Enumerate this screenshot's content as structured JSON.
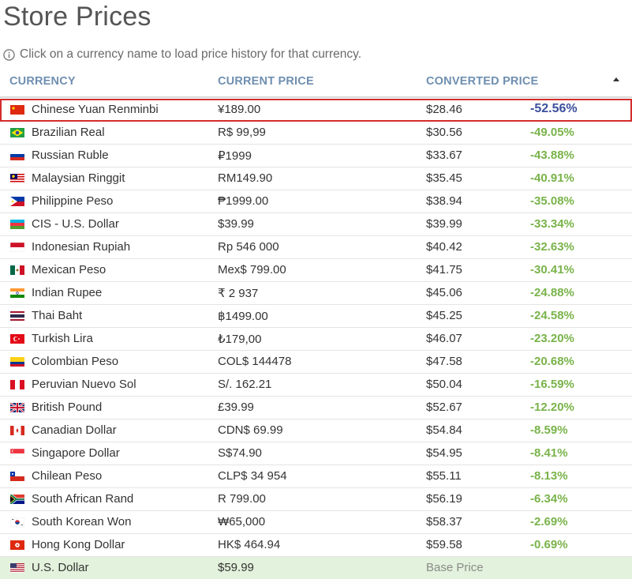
{
  "page": {
    "title": "Store Prices",
    "hint": "Click on a currency name to load price history for that currency."
  },
  "table": {
    "headers": {
      "currency": "CURRENCY",
      "current_price": "CURRENT PRICE",
      "converted_price": "CONVERTED PRICE"
    },
    "sort": "descending",
    "rows": [
      {
        "currency": "Chinese Yuan Renminbi",
        "flag": "cn",
        "price": "¥189.00",
        "converted": "$28.46",
        "diff": "-52.56%"
      },
      {
        "currency": "Brazilian Real",
        "flag": "br",
        "price": "R$ 99,99",
        "converted": "$30.56",
        "diff": "-49.05%"
      },
      {
        "currency": "Russian Ruble",
        "flag": "ru",
        "price": "₽1999",
        "converted": "$33.67",
        "diff": "-43.88%"
      },
      {
        "currency": "Malaysian Ringgit",
        "flag": "my",
        "price": "RM149.90",
        "converted": "$35.45",
        "diff": "-40.91%"
      },
      {
        "currency": "Philippine Peso",
        "flag": "ph",
        "price": "₱1999.00",
        "converted": "$38.94",
        "diff": "-35.08%"
      },
      {
        "currency": "CIS - U.S. Dollar",
        "flag": "az",
        "price": "$39.99",
        "converted": "$39.99",
        "diff": "-33.34%"
      },
      {
        "currency": "Indonesian Rupiah",
        "flag": "id",
        "price": "Rp 546 000",
        "converted": "$40.42",
        "diff": "-32.63%"
      },
      {
        "currency": "Mexican Peso",
        "flag": "mx",
        "price": "Mex$ 799.00",
        "converted": "$41.75",
        "diff": "-30.41%"
      },
      {
        "currency": "Indian Rupee",
        "flag": "in",
        "price": "₹ 2 937",
        "converted": "$45.06",
        "diff": "-24.88%"
      },
      {
        "currency": "Thai Baht",
        "flag": "th",
        "price": "฿1499.00",
        "converted": "$45.25",
        "diff": "-24.58%"
      },
      {
        "currency": "Turkish Lira",
        "flag": "tr",
        "price": "₺179,00",
        "converted": "$46.07",
        "diff": "-23.20%"
      },
      {
        "currency": "Colombian Peso",
        "flag": "co",
        "price": "COL$ 144478",
        "converted": "$47.58",
        "diff": "-20.68%"
      },
      {
        "currency": "Peruvian Nuevo Sol",
        "flag": "pe",
        "price": "S/. 162.21",
        "converted": "$50.04",
        "diff": "-16.59%"
      },
      {
        "currency": "British Pound",
        "flag": "gb",
        "price": "£39.99",
        "converted": "$52.67",
        "diff": "-12.20%"
      },
      {
        "currency": "Canadian Dollar",
        "flag": "ca",
        "price": "CDN$ 69.99",
        "converted": "$54.84",
        "diff": "-8.59%"
      },
      {
        "currency": "Singapore Dollar",
        "flag": "sg",
        "price": "S$74.90",
        "converted": "$54.95",
        "diff": "-8.41%"
      },
      {
        "currency": "Chilean Peso",
        "flag": "cl",
        "price": "CLP$ 34 954",
        "converted": "$55.11",
        "diff": "-8.13%"
      },
      {
        "currency": "South African Rand",
        "flag": "za",
        "price": "R 799.00",
        "converted": "$56.19",
        "diff": "-6.34%"
      },
      {
        "currency": "South Korean Won",
        "flag": "kr",
        "price": "₩65,000",
        "converted": "$58.37",
        "diff": "-2.69%"
      },
      {
        "currency": "Hong Kong Dollar",
        "flag": "hk",
        "price": "HK$ 464.94",
        "converted": "$59.58",
        "diff": "-0.69%"
      },
      {
        "currency": "U.S. Dollar",
        "flag": "us",
        "price": "$59.99",
        "converted": "Base Price",
        "diff": ""
      }
    ]
  },
  "colors": {
    "header": "#6f8fb0",
    "positive_diff": "#79b34a",
    "selected_diff": "#3b4f9e",
    "selected_border": "#d42b2b",
    "base_row_bg": "#e3f2dc"
  }
}
